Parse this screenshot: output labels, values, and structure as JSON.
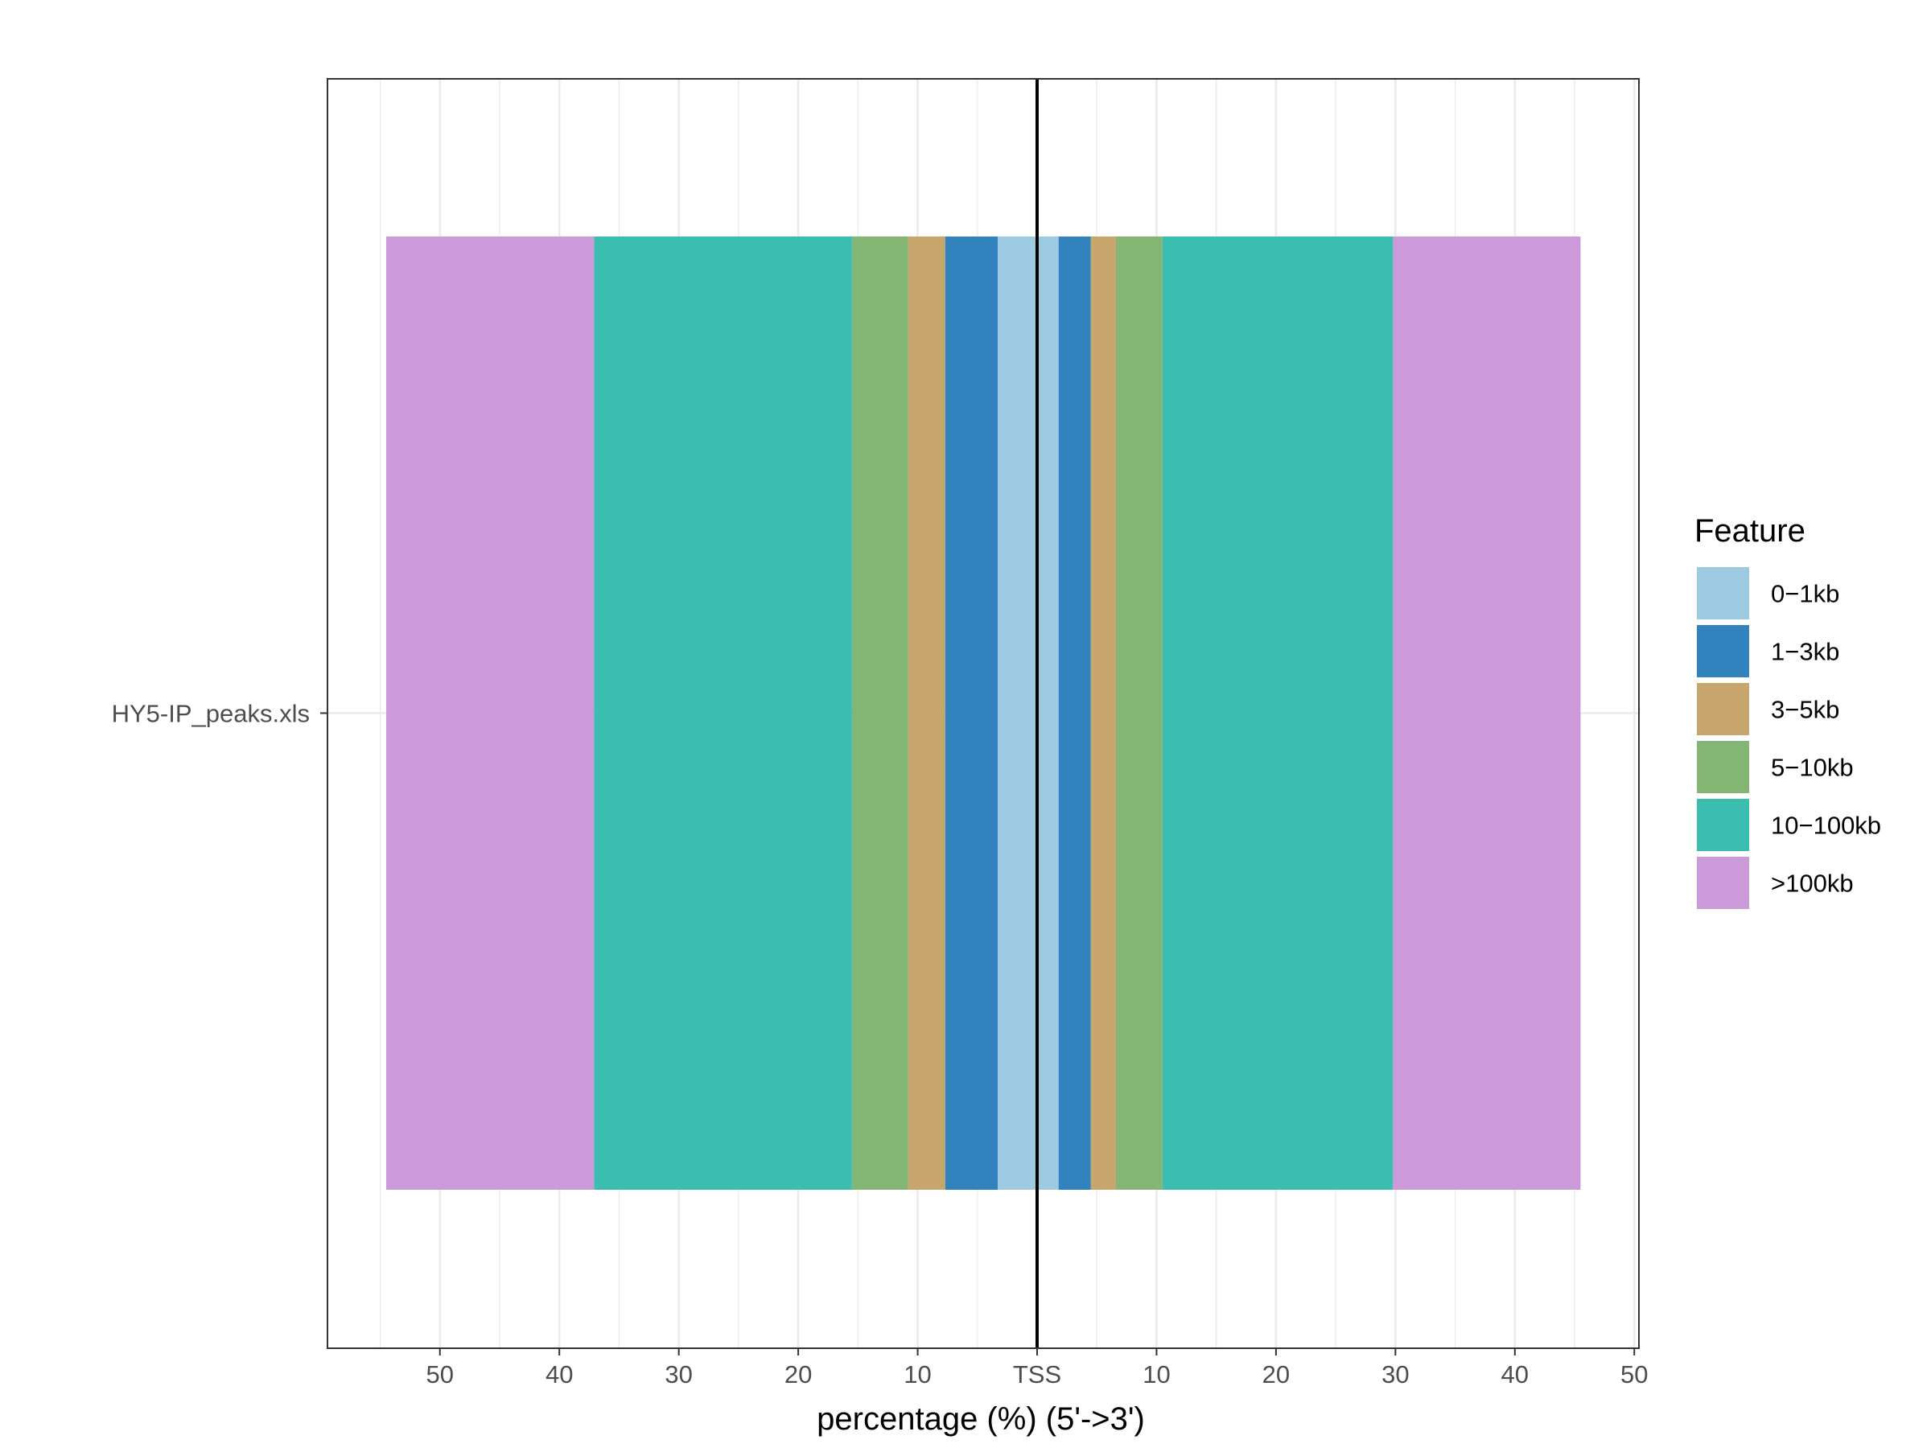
{
  "chart_data": {
    "type": "bar",
    "orientation": "horizontal",
    "stacked": true,
    "diverging": true,
    "categories": [
      "HY5-IP_peaks.xls"
    ],
    "xlabel": "percentage (%) (5'->3')",
    "ylabel": "",
    "xlim": [
      -55,
      50
    ],
    "center_label": "TSS",
    "x_tick_values": [
      -50,
      -40,
      -30,
      -20,
      -10,
      0,
      10,
      20,
      30,
      40,
      50
    ],
    "x_tick_labels": [
      "50",
      "40",
      "30",
      "20",
      "10",
      "TSS",
      "10",
      "20",
      "30",
      "40",
      "50"
    ],
    "grid": true,
    "legend": {
      "title": "Feature",
      "position": "right",
      "entries": [
        "0−1kb",
        "1−3kb",
        "3−5kb",
        "5−10kb",
        "10−100kb",
        ">100kb"
      ]
    },
    "series": [
      {
        "name": "0−1kb",
        "color": "#9ecae1",
        "upstream": 3.3,
        "downstream": 1.8
      },
      {
        "name": "1−3kb",
        "color": "#3182bd",
        "upstream": 4.4,
        "downstream": 2.7
      },
      {
        "name": "3−5kb",
        "color": "#c6a66c",
        "upstream": 3.1,
        "downstream": 2.1
      },
      {
        "name": "5−10kb",
        "color": "#83b674",
        "upstream": 4.7,
        "downstream": 3.9
      },
      {
        "name": "10−100kb",
        "color": "#3bbeb0",
        "upstream": 21.6,
        "downstream": 19.3
      },
      {
        "name": ">100kb",
        "color": "#cd9ad9",
        "upstream": 17.4,
        "downstream": 15.7
      }
    ]
  }
}
